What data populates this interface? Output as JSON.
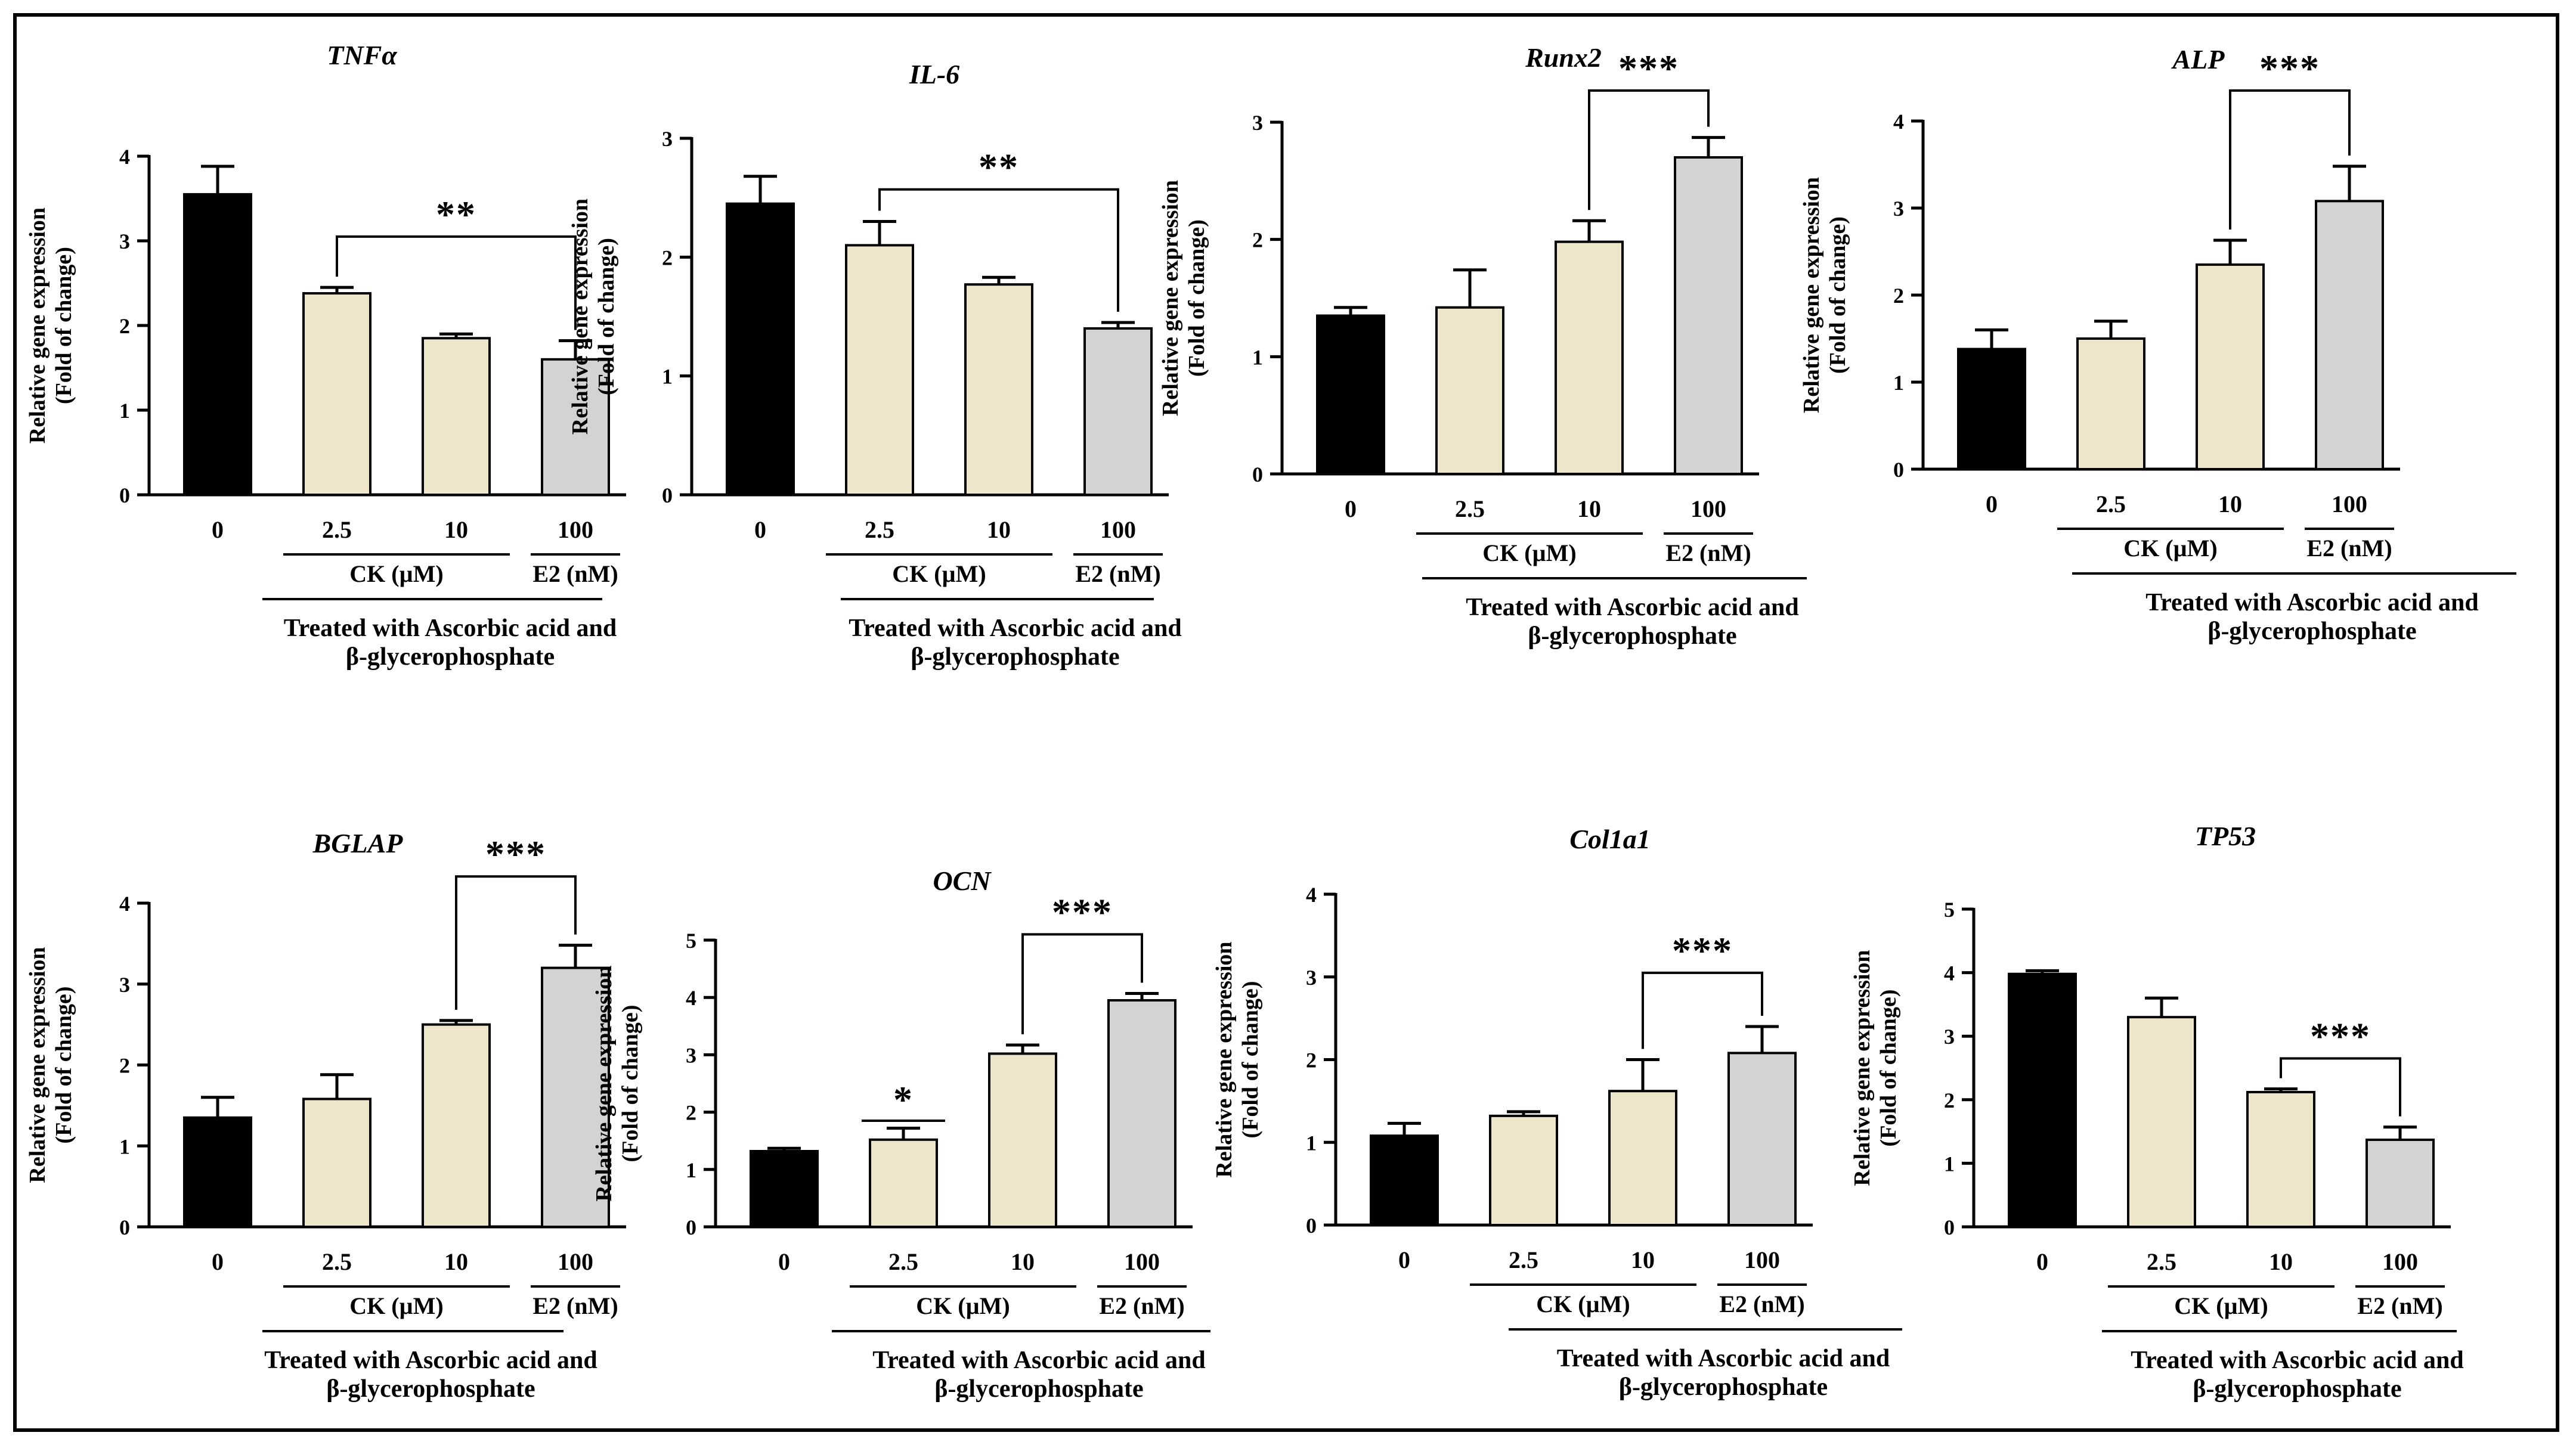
{
  "figure": {
    "colors": {
      "control": "#000000",
      "ck": "#eee6cb",
      "e2": "#d3d3d3",
      "stroke": "#000000"
    },
    "shared": {
      "ylabel_line1": "Relative gene expression",
      "ylabel_line2": "(Fold of change)",
      "ck_group_label": "CK (µM)",
      "e2_group_label": "E2 (nM)",
      "treatment_line1": "Treated with Ascorbic acid  and",
      "treatment_line2": "β-glycerophosphate"
    }
  },
  "chart_data": [
    {
      "type": "bar",
      "title": "TNFα",
      "categories": [
        "0",
        "2.5",
        "10",
        "100"
      ],
      "values": [
        3.55,
        2.38,
        1.85,
        1.6
      ],
      "errors": [
        0.33,
        0.07,
        0.05,
        0.22
      ],
      "groups": [
        "control",
        "ck",
        "ck",
        "e2"
      ],
      "ylim": [
        0,
        4
      ],
      "yticks": [
        "0",
        "1",
        "2",
        "3",
        "4"
      ],
      "significance": {
        "label": "**",
        "from": 1,
        "to": 3,
        "y": 3.05
      }
    },
    {
      "type": "bar",
      "title": "IL-6",
      "categories": [
        "0",
        "2.5",
        "10",
        "100"
      ],
      "values": [
        2.45,
        2.1,
        1.77,
        1.4
      ],
      "errors": [
        0.23,
        0.2,
        0.06,
        0.05
      ],
      "groups": [
        "control",
        "ck",
        "ck",
        "e2"
      ],
      "ylim": [
        0,
        3
      ],
      "yticks": [
        "0",
        "1",
        "2",
        "3"
      ],
      "significance": {
        "label": "**",
        "from": 1,
        "to": 3,
        "y": 2.57
      }
    },
    {
      "type": "bar",
      "title": "Runx2",
      "categories": [
        "0",
        "2.5",
        "10",
        "100"
      ],
      "values": [
        1.35,
        1.42,
        1.98,
        2.7
      ],
      "errors": [
        0.07,
        0.32,
        0.18,
        0.17
      ],
      "groups": [
        "control",
        "ck",
        "ck",
        "e2"
      ],
      "ylim": [
        0,
        3
      ],
      "yticks": [
        "0",
        "1",
        "2",
        "3"
      ],
      "significance": {
        "label": "***",
        "from": 2,
        "to": 3,
        "y": 3.27
      }
    },
    {
      "type": "bar",
      "title": "ALP",
      "categories": [
        "0",
        "2.5",
        "10",
        "100"
      ],
      "values": [
        1.38,
        1.5,
        2.35,
        3.08
      ],
      "errors": [
        0.22,
        0.2,
        0.28,
        0.4
      ],
      "groups": [
        "control",
        "ck",
        "ck",
        "e2"
      ],
      "ylim": [
        0,
        4
      ],
      "yticks": [
        "0",
        "1",
        "2",
        "3",
        "4"
      ],
      "significance": {
        "label": "***",
        "from": 2,
        "to": 3,
        "y": 4.35
      }
    },
    {
      "type": "bar",
      "title": "BGLAP",
      "categories": [
        "0",
        "2.5",
        "10",
        "100"
      ],
      "values": [
        1.35,
        1.58,
        2.5,
        3.2
      ],
      "errors": [
        0.25,
        0.3,
        0.05,
        0.28
      ],
      "groups": [
        "control",
        "ck",
        "ck",
        "e2"
      ],
      "ylim": [
        0,
        4
      ],
      "yticks": [
        "0",
        "1",
        "2",
        "3",
        "4"
      ],
      "significance": {
        "label": "***",
        "from": 2,
        "to": 3,
        "y": 4.33
      }
    },
    {
      "type": "bar",
      "title": "OCN",
      "categories": [
        "0",
        "2.5",
        "10",
        "100"
      ],
      "values": [
        1.32,
        1.52,
        3.02,
        3.95
      ],
      "errors": [
        0.05,
        0.2,
        0.15,
        0.12
      ],
      "groups": [
        "control",
        "ck",
        "ck",
        "e2"
      ],
      "ylim": [
        0,
        5
      ],
      "yticks": [
        "0",
        "1",
        "2",
        "3",
        "4",
        "5"
      ],
      "significance": {
        "label": "***",
        "from": 2,
        "to": 3,
        "y": 5.1
      },
      "extra_marks": [
        {
          "label": "*",
          "at": 1,
          "y": 1.85
        }
      ]
    },
    {
      "type": "bar",
      "title": "Col1a1",
      "categories": [
        "0",
        "2.5",
        "10",
        "100"
      ],
      "values": [
        1.08,
        1.32,
        1.62,
        2.08
      ],
      "errors": [
        0.15,
        0.05,
        0.38,
        0.32
      ],
      "groups": [
        "control",
        "ck",
        "ck",
        "e2"
      ],
      "ylim": [
        0,
        4
      ],
      "yticks": [
        "0",
        "1",
        "2",
        "3",
        "4"
      ],
      "significance": {
        "label": "***",
        "from": 2,
        "to": 3,
        "y": 3.05
      }
    },
    {
      "type": "bar",
      "title": "TP53",
      "categories": [
        "0",
        "2.5",
        "10",
        "100"
      ],
      "values": [
        3.98,
        3.3,
        2.12,
        1.37
      ],
      "errors": [
        0.05,
        0.3,
        0.05,
        0.2
      ],
      "groups": [
        "control",
        "ck",
        "ck",
        "e2"
      ],
      "ylim": [
        0,
        5
      ],
      "yticks": [
        "0",
        "1",
        "2",
        "3",
        "4",
        "5"
      ],
      "significance": {
        "label": "***",
        "from": 2,
        "to": 3,
        "y": 2.65
      }
    }
  ]
}
